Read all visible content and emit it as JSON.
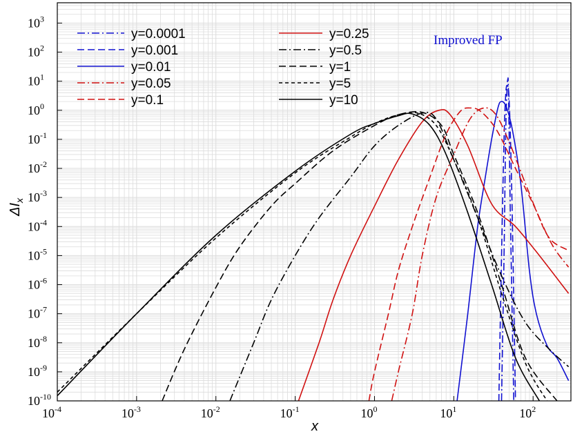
{
  "chart_data": {
    "type": "line",
    "xlabel": "x",
    "ylabel": "ΔI_x",
    "xscale": "log",
    "yscale": "log",
    "xlim": [
      0.0001,
      300
    ],
    "ylim": [
      1e-10,
      5000
    ],
    "grid": true,
    "legend_placement": "top-left, two columns",
    "annotation": {
      "text": "Improved FP",
      "color": "#1010d0"
    },
    "x_ticks": [
      {
        "base": "10",
        "exp": "-4",
        "v": 0.0001
      },
      {
        "base": "10",
        "exp": "-3",
        "v": 0.001
      },
      {
        "base": "10",
        "exp": "-2",
        "v": 0.01
      },
      {
        "base": "10",
        "exp": "-1",
        "v": 0.1
      },
      {
        "base": "10",
        "exp": "0",
        "v": 1
      },
      {
        "base": "10",
        "exp": "1",
        "v": 10
      },
      {
        "base": "10",
        "exp": "2",
        "v": 100
      }
    ],
    "y_ticks": [
      {
        "base": "10",
        "exp": "-10",
        "v": 1e-10
      },
      {
        "base": "10",
        "exp": "-9",
        "v": 1e-09
      },
      {
        "base": "10",
        "exp": "-8",
        "v": 1e-08
      },
      {
        "base": "10",
        "exp": "-7",
        "v": 1e-07
      },
      {
        "base": "10",
        "exp": "-6",
        "v": 1e-06
      },
      {
        "base": "10",
        "exp": "-5",
        "v": 1e-05
      },
      {
        "base": "10",
        "exp": "-4",
        "v": 0.0001
      },
      {
        "base": "10",
        "exp": "-3",
        "v": 0.001
      },
      {
        "base": "10",
        "exp": "-2",
        "v": 0.01
      },
      {
        "base": "10",
        "exp": "-1",
        "v": 0.1
      },
      {
        "base": "10",
        "exp": "0",
        "v": 1
      },
      {
        "base": "10",
        "exp": "1",
        "v": 10
      },
      {
        "base": "10",
        "exp": "2",
        "v": 100
      },
      {
        "base": "10",
        "exp": "3",
        "v": 1000
      }
    ],
    "series": [
      {
        "name": "y=0.0001",
        "color": "#1010d0",
        "dash": "dashdot",
        "x": [
          40.0,
          43.0,
          45.0,
          46.5,
          48.0,
          49.0,
          52.0,
          57.0
        ],
        "y": [
          1e-10,
          1e-05,
          0.1,
          3.0,
          12.0,
          3.0,
          0.0001,
          1e-10
        ]
      },
      {
        "name": "y=0.001",
        "color": "#1010d0",
        "dash": "dash",
        "x": [
          37.0,
          40.0,
          43.0,
          45.0,
          47.0,
          50.0,
          54.0,
          60.0
        ],
        "y": [
          1e-10,
          1e-05,
          0.1,
          3.0,
          7.0,
          2.0,
          0.001,
          1e-10
        ]
      },
      {
        "name": "y=0.01",
        "color": "#1010d0",
        "dash": "solid",
        "x": [
          11.0,
          15.0,
          20.0,
          25.0,
          30.0,
          36.0,
          40.0,
          46.0,
          55.0,
          70.0,
          90.0,
          110.0,
          150.0,
          200.0,
          280.0
        ],
        "y": [
          1e-10,
          1e-07,
          0.0001,
          0.005,
          0.1,
          1.2,
          2.0,
          1.3,
          0.2,
          0.003,
          3e-06,
          1e-07,
          8e-09,
          3e-09,
          5e-10
        ]
      },
      {
        "name": "y=0.05",
        "color": "#d01010",
        "dash": "dashdot",
        "x": [
          1.65,
          2.0,
          3.0,
          4.0,
          6.0,
          10.0,
          16.0,
          24.0,
          34.0,
          50.0,
          80.0,
          120.0,
          180.0,
          280.0
        ],
        "y": [
          1e-10,
          1e-09,
          1e-07,
          1e-05,
          0.001,
          0.03,
          0.5,
          1.2,
          0.7,
          0.08,
          0.003,
          0.0002,
          2e-05,
          4e-06
        ]
      },
      {
        "name": "y=0.1",
        "color": "#d01010",
        "dash": "dash",
        "x": [
          0.85,
          1.0,
          1.5,
          2.0,
          3.0,
          5.0,
          8.0,
          12.0,
          16.0,
          22.0,
          35.0,
          60.0,
          100.0,
          160.0,
          280.0
        ],
        "y": [
          1e-10,
          1e-09,
          1e-07,
          3e-06,
          0.0001,
          0.005,
          0.15,
          0.9,
          1.2,
          0.9,
          0.2,
          0.01,
          0.0006,
          4e-05,
          1.5e-05
        ]
      },
      {
        "name": "y=0.25",
        "color": "#d01010",
        "dash": "solid",
        "x": [
          0.11,
          0.2,
          0.3,
          0.5,
          1.0,
          2.0,
          4.0,
          6.5,
          9.0,
          15.0,
          30.0,
          60.0,
          120.0,
          280.0
        ],
        "y": [
          1e-10,
          1e-08,
          3e-07,
          1e-05,
          0.0005,
          0.02,
          0.4,
          1.0,
          0.7,
          0.06,
          0.0006,
          0.0001,
          1e-05,
          5e-07
        ]
      },
      {
        "name": "y=0.5",
        "color": "#000000",
        "dash": "dashdot",
        "x": [
          0.015,
          0.03,
          0.05,
          0.1,
          0.2,
          0.5,
          1.0,
          2.0,
          4.0,
          6.0,
          10.0,
          20.0,
          40.0,
          80.0,
          160.0,
          280.0
        ],
        "y": [
          1e-10,
          1e-08,
          3e-07,
          1e-05,
          0.0002,
          0.005,
          0.06,
          0.3,
          0.8,
          0.5,
          0.02,
          0.0002,
          2e-06,
          5e-08,
          6e-09,
          1.5e-09
        ]
      },
      {
        "name": "y=1",
        "color": "#000000",
        "dash": "dash",
        "x": [
          0.0021,
          0.004,
          0.01,
          0.02,
          0.05,
          0.1,
          0.3,
          1.0,
          2.0,
          4.0,
          7.0,
          10.0,
          20.0,
          40.0,
          80.0,
          200.0
        ],
        "y": [
          1e-10,
          6e-09,
          8e-07,
          2e-05,
          0.0005,
          0.003,
          0.04,
          0.3,
          0.7,
          0.85,
          0.3,
          0.03,
          0.0003,
          1e-06,
          3e-09,
          1e-10
        ]
      },
      {
        "name": "y=5",
        "color": "#000000",
        "dash": "shortdash",
        "x": [
          0.0001,
          0.001,
          0.01,
          0.1,
          0.5,
          1.0,
          2.0,
          3.5,
          6.0,
          10.0,
          20.0,
          40.0,
          80.0,
          150.0
        ],
        "y": [
          2e-10,
          1e-07,
          4e-05,
          0.007,
          0.12,
          0.35,
          0.7,
          0.8,
          0.3,
          0.02,
          0.0002,
          5e-07,
          2e-09,
          1e-10
        ]
      },
      {
        "name": "y=10",
        "color": "#000000",
        "dash": "solid",
        "x": [
          0.0001,
          0.001,
          0.01,
          0.1,
          0.5,
          1.0,
          2.0,
          3.0,
          5.0,
          8.0,
          15.0,
          30.0,
          60.0,
          120.0
        ],
        "y": [
          1.5e-10,
          1e-07,
          5e-05,
          0.008,
          0.15,
          0.35,
          0.65,
          0.75,
          0.3,
          0.03,
          0.0003,
          1e-06,
          3e-09,
          1e-10
        ]
      }
    ]
  }
}
